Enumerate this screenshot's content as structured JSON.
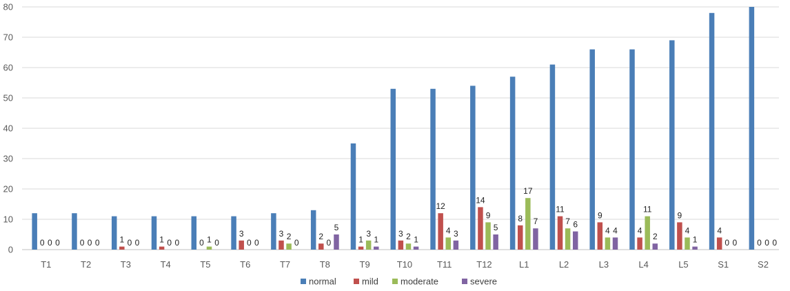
{
  "chart_data": {
    "type": "bar",
    "title": "",
    "xlabel": "",
    "ylabel": "",
    "ylim": [
      0,
      80
    ],
    "yticks": [
      0,
      10,
      20,
      30,
      40,
      50,
      60,
      70,
      80
    ],
    "grid": true,
    "legend_position": "bottom",
    "categories": [
      "T1",
      "T2",
      "T3",
      "T4",
      "T5",
      "T6",
      "T7",
      "T8",
      "T9",
      "T10",
      "T11",
      "T12",
      "L1",
      "L2",
      "L3",
      "L4",
      "L5",
      "S1",
      "S2"
    ],
    "series": [
      {
        "name": "normal",
        "color": "#4a7eb7",
        "labeled": false,
        "values": [
          12,
          12,
          11,
          11,
          11,
          11,
          12,
          13,
          35,
          53,
          53,
          54,
          57,
          61,
          66,
          66,
          69,
          78,
          80
        ]
      },
      {
        "name": "mild",
        "color": "#c0504d",
        "labeled": true,
        "values": [
          0,
          0,
          1,
          1,
          0,
          3,
          3,
          2,
          1,
          3,
          12,
          14,
          8,
          11,
          9,
          4,
          9,
          4,
          0
        ]
      },
      {
        "name": "moderate",
        "color": "#9bbb59",
        "labeled": true,
        "values": [
          0,
          0,
          0,
          0,
          1,
          0,
          2,
          0,
          3,
          2,
          4,
          9,
          17,
          7,
          4,
          11,
          4,
          0,
          0
        ]
      },
      {
        "name": "severe",
        "color": "#8064a2",
        "labeled": true,
        "values": [
          0,
          0,
          0,
          0,
          0,
          0,
          0,
          5,
          1,
          1,
          3,
          5,
          7,
          6,
          4,
          2,
          1,
          0,
          0
        ]
      }
    ]
  }
}
